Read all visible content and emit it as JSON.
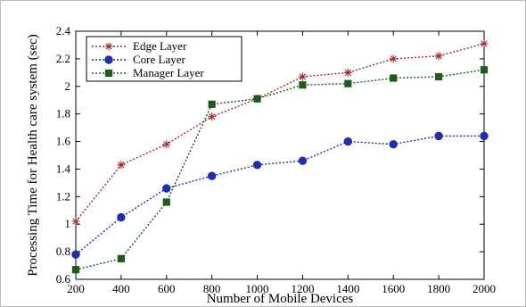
{
  "chart_data": {
    "type": "line",
    "xlabel": "Number of Mobile Devices",
    "ylabel": "Processing Time for Health care system (sec)",
    "x": [
      200,
      400,
      600,
      800,
      1000,
      1200,
      1400,
      1600,
      1800,
      2000
    ],
    "xlim": [
      200,
      2000
    ],
    "ylim": [
      0.6,
      2.4
    ],
    "xticks": [
      "200",
      "400",
      "600",
      "800",
      "1000",
      "1200",
      "1400",
      "1600",
      "1800",
      "2000"
    ],
    "yticks": [
      "0.6",
      "0.8",
      "1",
      "1.2",
      "1.4",
      "1.6",
      "1.8",
      "2",
      "2.2",
      "2.4"
    ],
    "grid": false,
    "legend_position": "top-left",
    "series": [
      {
        "name": "Edge Layer",
        "color": "#a52a2a",
        "marker": "asterisk",
        "values": [
          1.02,
          1.43,
          1.58,
          1.78,
          1.91,
          2.07,
          2.1,
          2.2,
          2.22,
          2.31
        ]
      },
      {
        "name": "Core Layer",
        "color": "#1f2fa8",
        "marker": "circle",
        "values": [
          0.78,
          1.05,
          1.26,
          1.35,
          1.43,
          1.46,
          1.6,
          1.58,
          1.64,
          1.64
        ]
      },
      {
        "name": "Manager Layer",
        "color": "#1e5a1e",
        "marker": "square",
        "values": [
          0.67,
          0.75,
          1.16,
          1.87,
          1.91,
          2.01,
          2.02,
          2.06,
          2.07,
          2.12
        ]
      }
    ]
  }
}
